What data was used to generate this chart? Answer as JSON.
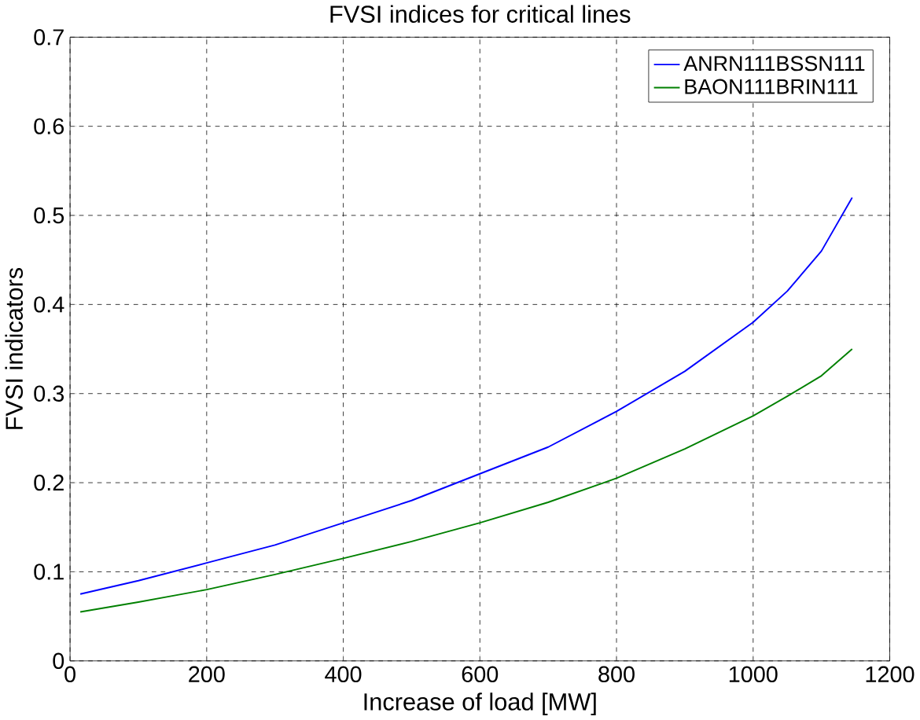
{
  "chart_data": {
    "type": "line",
    "title": "FVSI indices for critical lines",
    "xlabel": "Increase of load [MW]",
    "ylabel": "FVSI indicators",
    "xlim": [
      0,
      1200
    ],
    "ylim": [
      0,
      0.7
    ],
    "xticks": [
      0,
      200,
      400,
      600,
      800,
      1000,
      1200
    ],
    "yticks": [
      0,
      0.1,
      0.2,
      0.3,
      0.4,
      0.5,
      0.6,
      0.7
    ],
    "grid": true,
    "legend": "top right",
    "marker": "none",
    "line_style": "solid",
    "series": [
      {
        "name": "ANRN111BSSN111",
        "color": "#0000ff",
        "x": [
          15,
          100,
          200,
          300,
          400,
          500,
          600,
          700,
          800,
          900,
          1000,
          1050,
          1100,
          1145
        ],
        "values": [
          0.075,
          0.09,
          0.11,
          0.13,
          0.155,
          0.18,
          0.21,
          0.24,
          0.28,
          0.325,
          0.38,
          0.415,
          0.46,
          0.52
        ]
      },
      {
        "name": "BAON111BRIN111",
        "color": "#008000",
        "x": [
          15,
          100,
          200,
          300,
          400,
          500,
          600,
          700,
          800,
          900,
          1000,
          1050,
          1100,
          1145
        ],
        "values": [
          0.055,
          0.066,
          0.08,
          0.097,
          0.115,
          0.134,
          0.155,
          0.178,
          0.205,
          0.238,
          0.275,
          0.297,
          0.32,
          0.35
        ]
      }
    ]
  }
}
